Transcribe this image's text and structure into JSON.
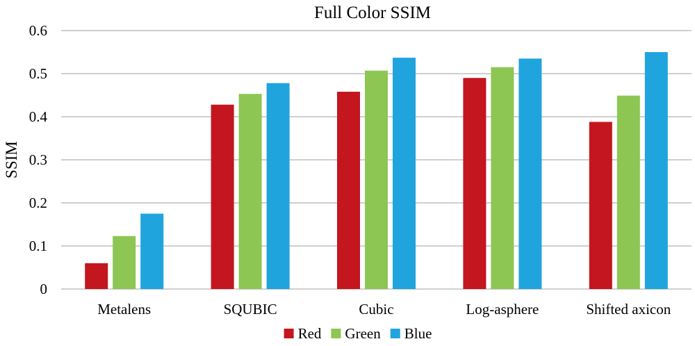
{
  "chart_data": {
    "type": "bar",
    "title": "Full Color SSIM",
    "xlabel": "",
    "ylabel": "SSIM",
    "ylim": [
      0,
      0.6
    ],
    "yticks": [
      0,
      0.1,
      0.2,
      0.3,
      0.4,
      0.5,
      0.6
    ],
    "ytick_labels": [
      "0",
      "0.1",
      "0.2",
      "0.3",
      "0.4",
      "0.5",
      "0.6"
    ],
    "grid": true,
    "legend_position": "bottom",
    "categories": [
      "Metalens",
      "SQUBIC",
      "Cubic",
      "Log-asphere",
      "Shifted axicon"
    ],
    "series": [
      {
        "name": "Red",
        "color": "#c3161e",
        "values": [
          0.06,
          0.428,
          0.458,
          0.49,
          0.388
        ]
      },
      {
        "name": "Green",
        "color": "#8dc653",
        "values": [
          0.123,
          0.453,
          0.507,
          0.515,
          0.449
        ]
      },
      {
        "name": "Blue",
        "color": "#20a4dd",
        "values": [
          0.175,
          0.478,
          0.537,
          0.535,
          0.55
        ]
      }
    ]
  }
}
